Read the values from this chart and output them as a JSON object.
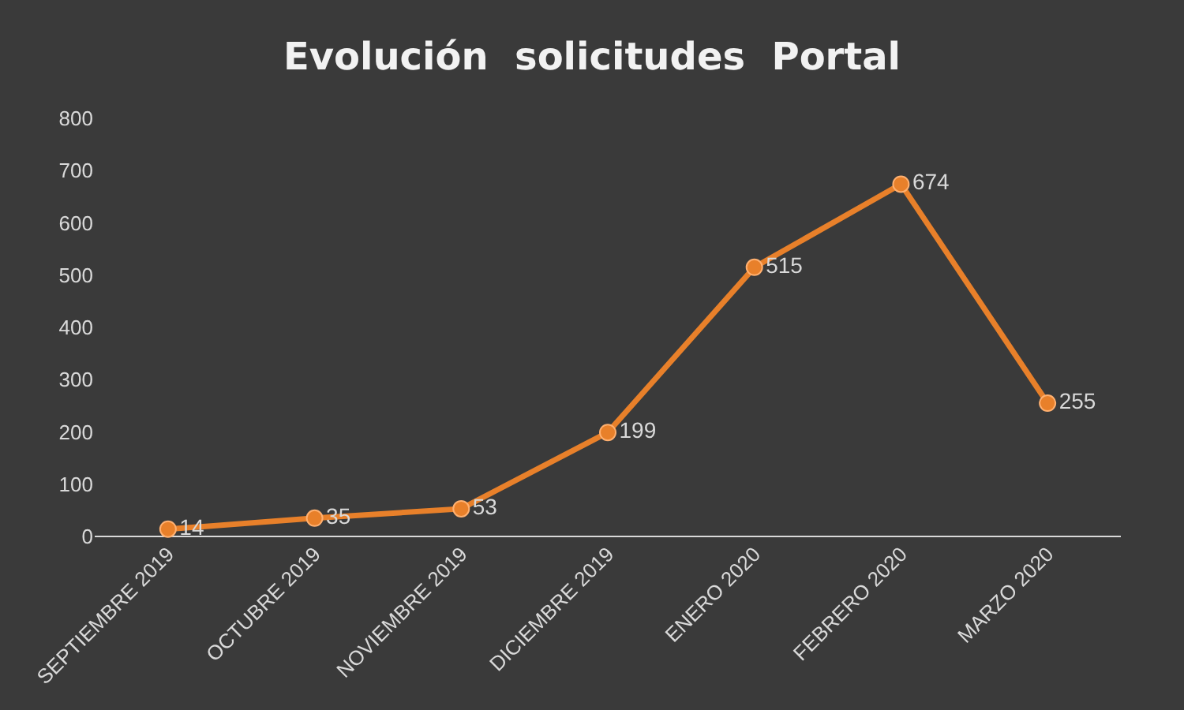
{
  "chart_data": {
    "type": "line",
    "title": "Evolución  solicitudes  Portal",
    "categories": [
      "SEPTIEMBRE 2019",
      "OCTUBRE 2019",
      "NOVIEMBRE 2019",
      "DICIEMBRE 2019",
      "ENERO 2020",
      "FEBRERO 2020",
      "MARZO 2020"
    ],
    "series": [
      {
        "color": "#e8802a",
        "values": [
          14,
          35,
          53,
          199,
          515,
          674,
          255
        ]
      }
    ],
    "ylim": [
      0,
      800
    ],
    "yticks": [
      0,
      100,
      200,
      300,
      400,
      500,
      600,
      700,
      800
    ],
    "data_labels": true,
    "marker": "circle",
    "line_style": "solid",
    "grid": false,
    "legend": false
  }
}
